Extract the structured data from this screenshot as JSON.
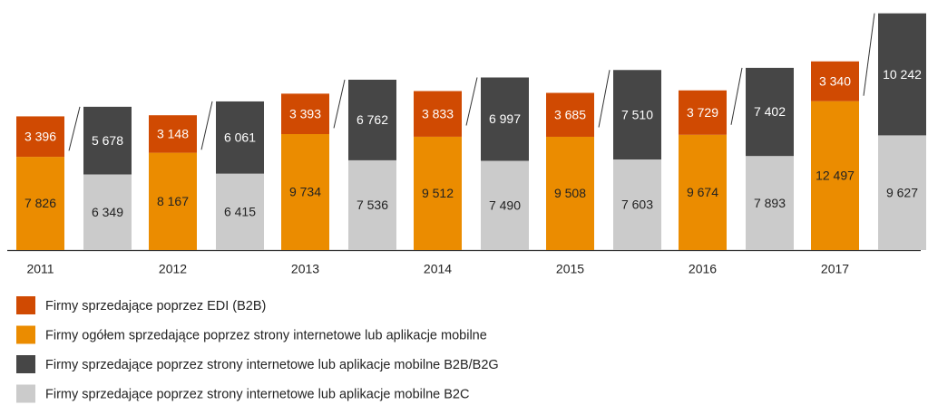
{
  "chart_data": {
    "type": "stacked_bar_pairs",
    "categories": [
      "2011",
      "2012",
      "2013",
      "2014",
      "2015",
      "2016",
      "2017"
    ],
    "ylim": [
      0,
      20000
    ],
    "series": [
      {
        "name": "Firmy sprzedające poprzez EDI (B2B)",
        "color": "#d04a02",
        "stack": "A",
        "values": [
          3396,
          3148,
          3393,
          3833,
          3685,
          3729,
          3340
        ],
        "value_labels": [
          "3 396",
          "3 148",
          "3 393",
          "3 833",
          "3 685",
          "3 729",
          "3 340"
        ]
      },
      {
        "name": "Firmy ogółem sprzedające poprzez strony internetowe lub aplikacje mobilne",
        "color": "#eb8c00",
        "stack": "A",
        "values": [
          7826,
          8167,
          9734,
          9512,
          9508,
          9674,
          12497
        ],
        "value_labels": [
          "7 826",
          "8 167",
          "9 734",
          "9 512",
          "9 508",
          "9 674",
          "12 497"
        ]
      },
      {
        "name": "Firmy sprzedające poprzez strony internetowe lub aplikacje mobilne B2B/B2G",
        "color": "#464646",
        "stack": "B",
        "values": [
          5678,
          6061,
          6762,
          6997,
          7510,
          7402,
          10242
        ],
        "value_labels": [
          "5 678",
          "6 061",
          "6 762",
          "6 997",
          "7 510",
          "7 402",
          "10 242"
        ]
      },
      {
        "name": "Firmy sprzedające poprzez strony internetowe lub aplikacje mobilne B2C",
        "color": "#cbcbcb",
        "stack": "B",
        "values": [
          6349,
          6415,
          7536,
          7490,
          7603,
          7893,
          9627
        ],
        "value_labels": [
          "6 349",
          "6 415",
          "7 536",
          "7 490",
          "7 603",
          "7 893",
          "9 627"
        ]
      }
    ]
  }
}
